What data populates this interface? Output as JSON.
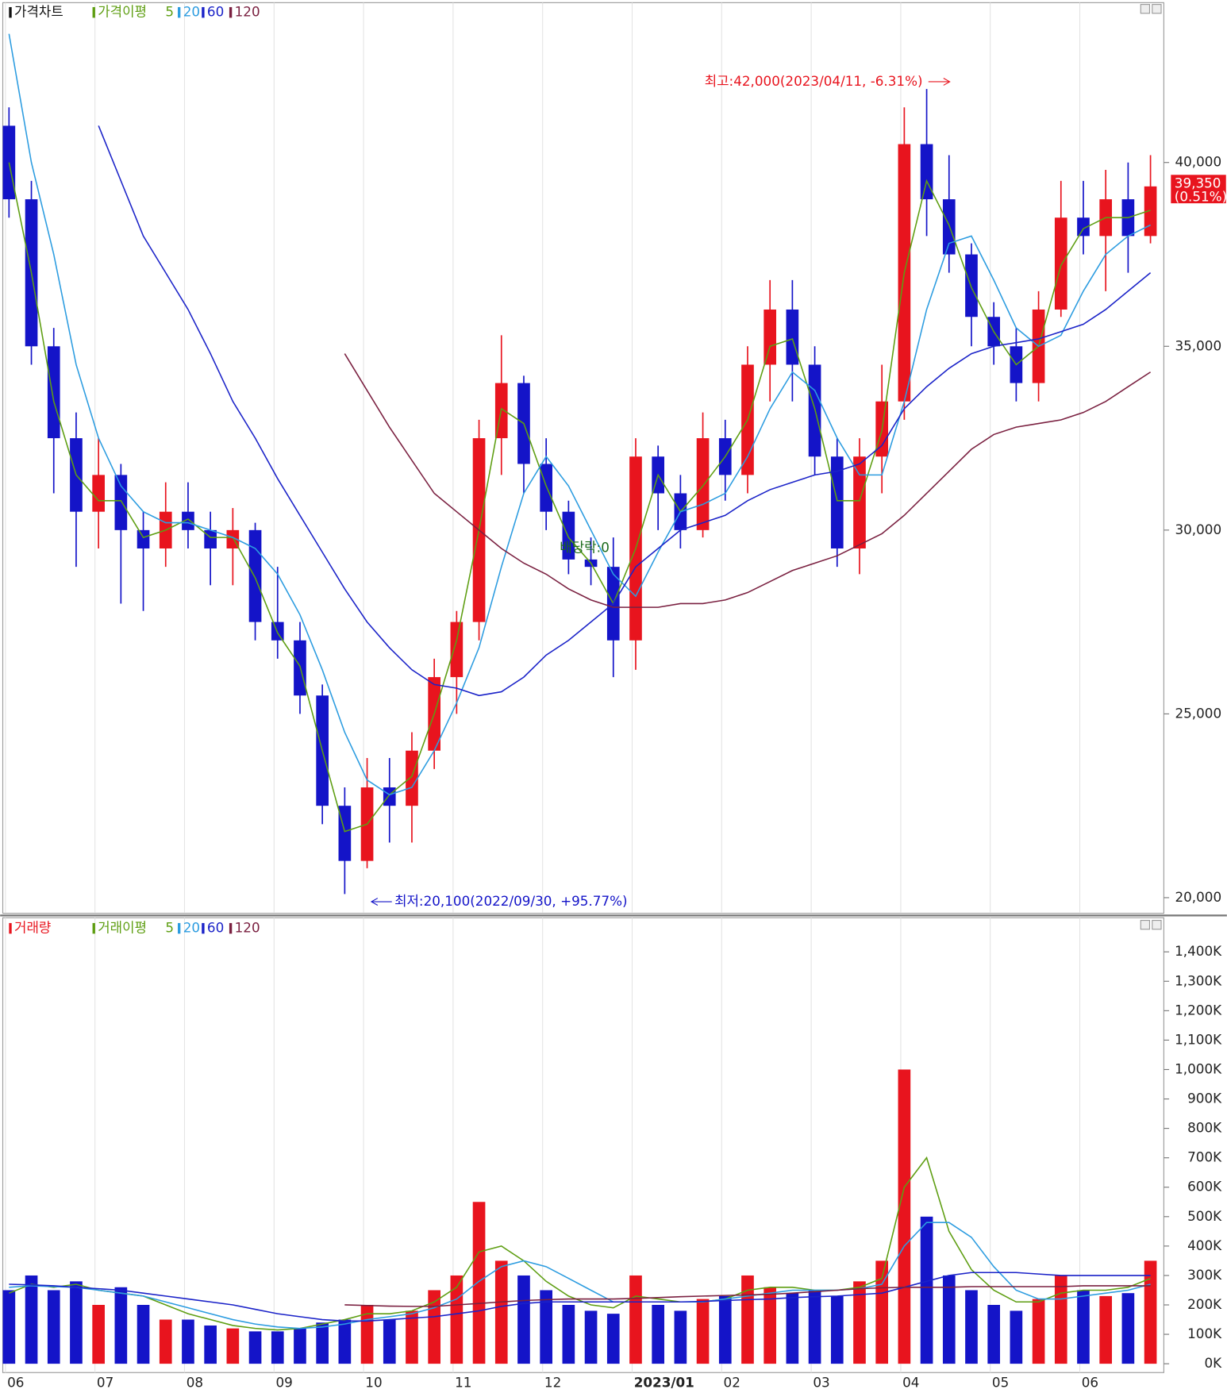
{
  "chart_data": [
    {
      "type": "candlestick",
      "name": "가격차트",
      "ma_label": "가격이평",
      "up_color": "#e8141e",
      "down_color": "#1414c8",
      "ylim": [
        19600,
        44300
      ],
      "yticks": [
        {
          "value": 20000,
          "label": "20,000"
        },
        {
          "value": 25000,
          "label": "25,000"
        },
        {
          "value": 30000,
          "label": "30,000"
        },
        {
          "value": 35000,
          "label": "35,000"
        },
        {
          "value": 40000,
          "label": "40,000"
        }
      ],
      "open": [
        41000,
        39000,
        35000,
        32500,
        30500,
        31500,
        30000,
        29500,
        30500,
        30000,
        29500,
        30000,
        27500,
        27000,
        25500,
        22500,
        21000,
        23000,
        22500,
        24000,
        26000,
        27500,
        32500,
        34000,
        31800,
        30500,
        29200,
        29000,
        27000,
        32000,
        31000,
        30000,
        32500,
        31500,
        34500,
        36000,
        34500,
        32000,
        29500,
        32000,
        33500,
        40500,
        39000,
        37500,
        35800,
        35000,
        34000,
        36000,
        38500,
        38000,
        39000,
        38000
      ],
      "high": [
        41500,
        39500,
        35500,
        33200,
        32500,
        31800,
        30500,
        31300,
        31300,
        30500,
        30600,
        30200,
        29000,
        27500,
        25800,
        23000,
        23800,
        23800,
        24500,
        26500,
        27800,
        33000,
        35300,
        34200,
        32500,
        30800,
        29800,
        29800,
        32500,
        32300,
        31500,
        33200,
        33000,
        35000,
        36800,
        36800,
        35000,
        32500,
        32500,
        34500,
        41500,
        42000,
        40200,
        37800,
        36200,
        35500,
        36500,
        39500,
        39500,
        39800,
        40000,
        40200
      ],
      "low": [
        38500,
        34500,
        31000,
        29000,
        29500,
        28000,
        27800,
        29000,
        29500,
        28500,
        28500,
        27000,
        26500,
        25000,
        22000,
        20100,
        20800,
        21500,
        21500,
        23500,
        25000,
        27000,
        31500,
        31000,
        30000,
        28800,
        28500,
        26000,
        26200,
        30000,
        29500,
        29800,
        30800,
        31000,
        33500,
        33500,
        31500,
        29000,
        28800,
        31000,
        33000,
        38000,
        37000,
        35000,
        34500,
        33500,
        33500,
        35800,
        37500,
        36500,
        37000,
        37800
      ],
      "close": [
        39000,
        35000,
        32500,
        30500,
        31500,
        30000,
        29500,
        30500,
        30000,
        29500,
        30000,
        27500,
        27000,
        25500,
        22500,
        21000,
        23000,
        22500,
        24000,
        26000,
        27500,
        32500,
        34000,
        31800,
        30500,
        29200,
        29000,
        27000,
        32000,
        31000,
        30000,
        32500,
        31500,
        34500,
        36000,
        34500,
        32000,
        29500,
        32000,
        33500,
        40500,
        39000,
        37500,
        35800,
        35000,
        34000,
        36000,
        38500,
        38000,
        39000,
        38000,
        39350
      ],
      "moving_averages": [
        {
          "name": "5",
          "color": "#5e9e12",
          "values": [
            40000,
            37000,
            33500,
            31500,
            30800,
            30800,
            29800,
            30000,
            30300,
            29800,
            29800,
            28700,
            27200,
            26300,
            24000,
            21800,
            22000,
            22800,
            23300,
            25000,
            27000,
            30000,
            33300,
            32900,
            31200,
            29800,
            29100,
            28000,
            29500,
            31500,
            30500,
            31200,
            32000,
            33000,
            35000,
            35200,
            33300,
            30800,
            30800,
            32700,
            37000,
            39500,
            38300,
            36600,
            35400,
            34500,
            35000,
            37200,
            38200,
            38500,
            38500,
            38700
          ]
        },
        {
          "name": "20",
          "color": "#2c9ce0",
          "values": [
            43500,
            40000,
            37500,
            34500,
            32500,
            31200,
            30500,
            30200,
            30200,
            30000,
            29800,
            29500,
            28800,
            27700,
            26200,
            24500,
            23200,
            22800,
            23000,
            24000,
            25300,
            26800,
            29000,
            31000,
            32000,
            31200,
            30000,
            28800,
            28200,
            29400,
            30500,
            30700,
            31000,
            32000,
            33300,
            34300,
            33800,
            32500,
            31500,
            31500,
            33500,
            36000,
            37800,
            38000,
            36800,
            35500,
            35000,
            35300,
            36500,
            37500,
            38000,
            38300
          ]
        },
        {
          "name": "60",
          "color": "#1a22c8",
          "values": [
            null,
            null,
            null,
            null,
            41000,
            39500,
            38000,
            37000,
            36000,
            34800,
            33500,
            32500,
            31400,
            30400,
            29400,
            28400,
            27500,
            26800,
            26200,
            25800,
            25700,
            25500,
            25600,
            26000,
            26600,
            27000,
            27500,
            28000,
            29000,
            29500,
            30000,
            30200,
            30400,
            30800,
            31100,
            31300,
            31500,
            31600,
            31800,
            32300,
            33300,
            33900,
            34400,
            34800,
            35000,
            35100,
            35200,
            35400,
            35600,
            36000,
            36500,
            37000
          ]
        },
        {
          "name": "120",
          "color": "#7a2040",
          "values": [
            null,
            null,
            null,
            null,
            null,
            null,
            null,
            null,
            null,
            null,
            null,
            null,
            null,
            null,
            null,
            34800,
            33800,
            32800,
            31900,
            31000,
            30500,
            30000,
            29500,
            29100,
            28800,
            28400,
            28100,
            27900,
            27900,
            27900,
            28000,
            28000,
            28100,
            28300,
            28600,
            28900,
            29100,
            29300,
            29600,
            29900,
            30400,
            31000,
            31600,
            32200,
            32600,
            32800,
            32900,
            33000,
            33200,
            33500,
            33900,
            34300
          ]
        }
      ],
      "annotations": [
        {
          "text": "최고:42,000(2023/04/11, -6.31%)",
          "color": "#e8141e"
        },
        {
          "text": "최저:20,100(2022/09/30, +95.77%)",
          "color": "#1414c8"
        },
        {
          "text": "배당락:0",
          "color": "#1a6a1a"
        }
      ],
      "last_price": {
        "value": 39350,
        "label": "39,350"
      },
      "change_label": "(0.51%)"
    },
    {
      "type": "bar",
      "name": "거래량",
      "ma_label": "거래이평",
      "categories": [
        "06",
        null,
        null,
        null,
        "07",
        null,
        null,
        null,
        "08",
        null,
        null,
        null,
        "09",
        null,
        null,
        null,
        "10",
        null,
        null,
        null,
        "11",
        null,
        null,
        null,
        "12",
        null,
        null,
        null,
        "2023/01",
        null,
        null,
        null,
        "02",
        null,
        null,
        null,
        "03",
        null,
        null,
        null,
        "04",
        null,
        null,
        null,
        "05",
        null,
        null,
        null,
        "06",
        null,
        null,
        null
      ],
      "ylim": [
        -30,
        1510
      ],
      "yticks": [
        {
          "value": 0,
          "label": "0K"
        },
        {
          "value": 100,
          "label": "100K"
        },
        {
          "value": 200,
          "label": "200K"
        },
        {
          "value": 300,
          "label": "300K"
        },
        {
          "value": 400,
          "label": "400K"
        },
        {
          "value": 500,
          "label": "500K"
        },
        {
          "value": 600,
          "label": "600K"
        },
        {
          "value": 700,
          "label": "700K"
        },
        {
          "value": 800,
          "label": "800K"
        },
        {
          "value": 900,
          "label": "900K"
        },
        {
          "value": 1000,
          "label": "1,000K"
        },
        {
          "value": 1100,
          "label": "1,100K"
        },
        {
          "value": 1200,
          "label": "1,200K"
        },
        {
          "value": 1300,
          "label": "1,300K"
        },
        {
          "value": 1400,
          "label": "1,400K"
        }
      ],
      "values": [
        250,
        300,
        250,
        280,
        200,
        260,
        200,
        150,
        150,
        130,
        120,
        110,
        110,
        120,
        140,
        150,
        200,
        150,
        180,
        250,
        300,
        550,
        350,
        300,
        250,
        200,
        180,
        170,
        300,
        200,
        180,
        220,
        230,
        300,
        260,
        240,
        250,
        230,
        280,
        350,
        1000,
        500,
        300,
        250,
        200,
        180,
        220,
        300,
        250,
        230,
        240,
        350
      ],
      "moving_averages": [
        {
          "name": "5",
          "color": "#5e9e12",
          "values": [
            240,
            270,
            260,
            270,
            250,
            240,
            230,
            200,
            170,
            150,
            130,
            120,
            115,
            120,
            135,
            150,
            170,
            170,
            180,
            210,
            260,
            380,
            400,
            350,
            280,
            230,
            200,
            190,
            230,
            220,
            210,
            210,
            220,
            250,
            260,
            260,
            250,
            250,
            260,
            290,
            600,
            700,
            450,
            320,
            250,
            210,
            210,
            240,
            250,
            250,
            260,
            290
          ]
        },
        {
          "name": "20",
          "color": "#2c9ce0",
          "values": [
            260,
            265,
            262,
            260,
            250,
            240,
            230,
            210,
            190,
            170,
            150,
            135,
            125,
            120,
            125,
            135,
            150,
            160,
            170,
            190,
            220,
            280,
            330,
            350,
            330,
            290,
            250,
            210,
            210,
            210,
            210,
            210,
            220,
            230,
            240,
            250,
            250,
            250,
            255,
            270,
            400,
            480,
            480,
            430,
            330,
            250,
            220,
            220,
            230,
            240,
            250,
            270
          ]
        },
        {
          "name": "60",
          "color": "#1a22c8",
          "values": [
            270,
            268,
            265,
            260,
            255,
            250,
            240,
            230,
            220,
            210,
            200,
            185,
            170,
            160,
            150,
            145,
            145,
            150,
            155,
            160,
            170,
            180,
            195,
            205,
            210,
            210,
            210,
            210,
            210,
            210,
            210,
            212,
            215,
            218,
            220,
            225,
            228,
            230,
            235,
            240,
            260,
            280,
            300,
            310,
            310,
            310,
            305,
            300,
            300,
            300,
            300,
            300
          ]
        },
        {
          "name": "120",
          "color": "#7a2040",
          "values": [
            null,
            null,
            null,
            null,
            null,
            null,
            null,
            null,
            null,
            null,
            null,
            null,
            null,
            null,
            null,
            200,
            198,
            196,
            195,
            195,
            200,
            205,
            210,
            215,
            218,
            220,
            220,
            220,
            222,
            225,
            228,
            230,
            232,
            234,
            236,
            240,
            245,
            250,
            255,
            258,
            260,
            260,
            260,
            262,
            262,
            262,
            262,
            262,
            265,
            265,
            265,
            265
          ]
        }
      ]
    }
  ]
}
